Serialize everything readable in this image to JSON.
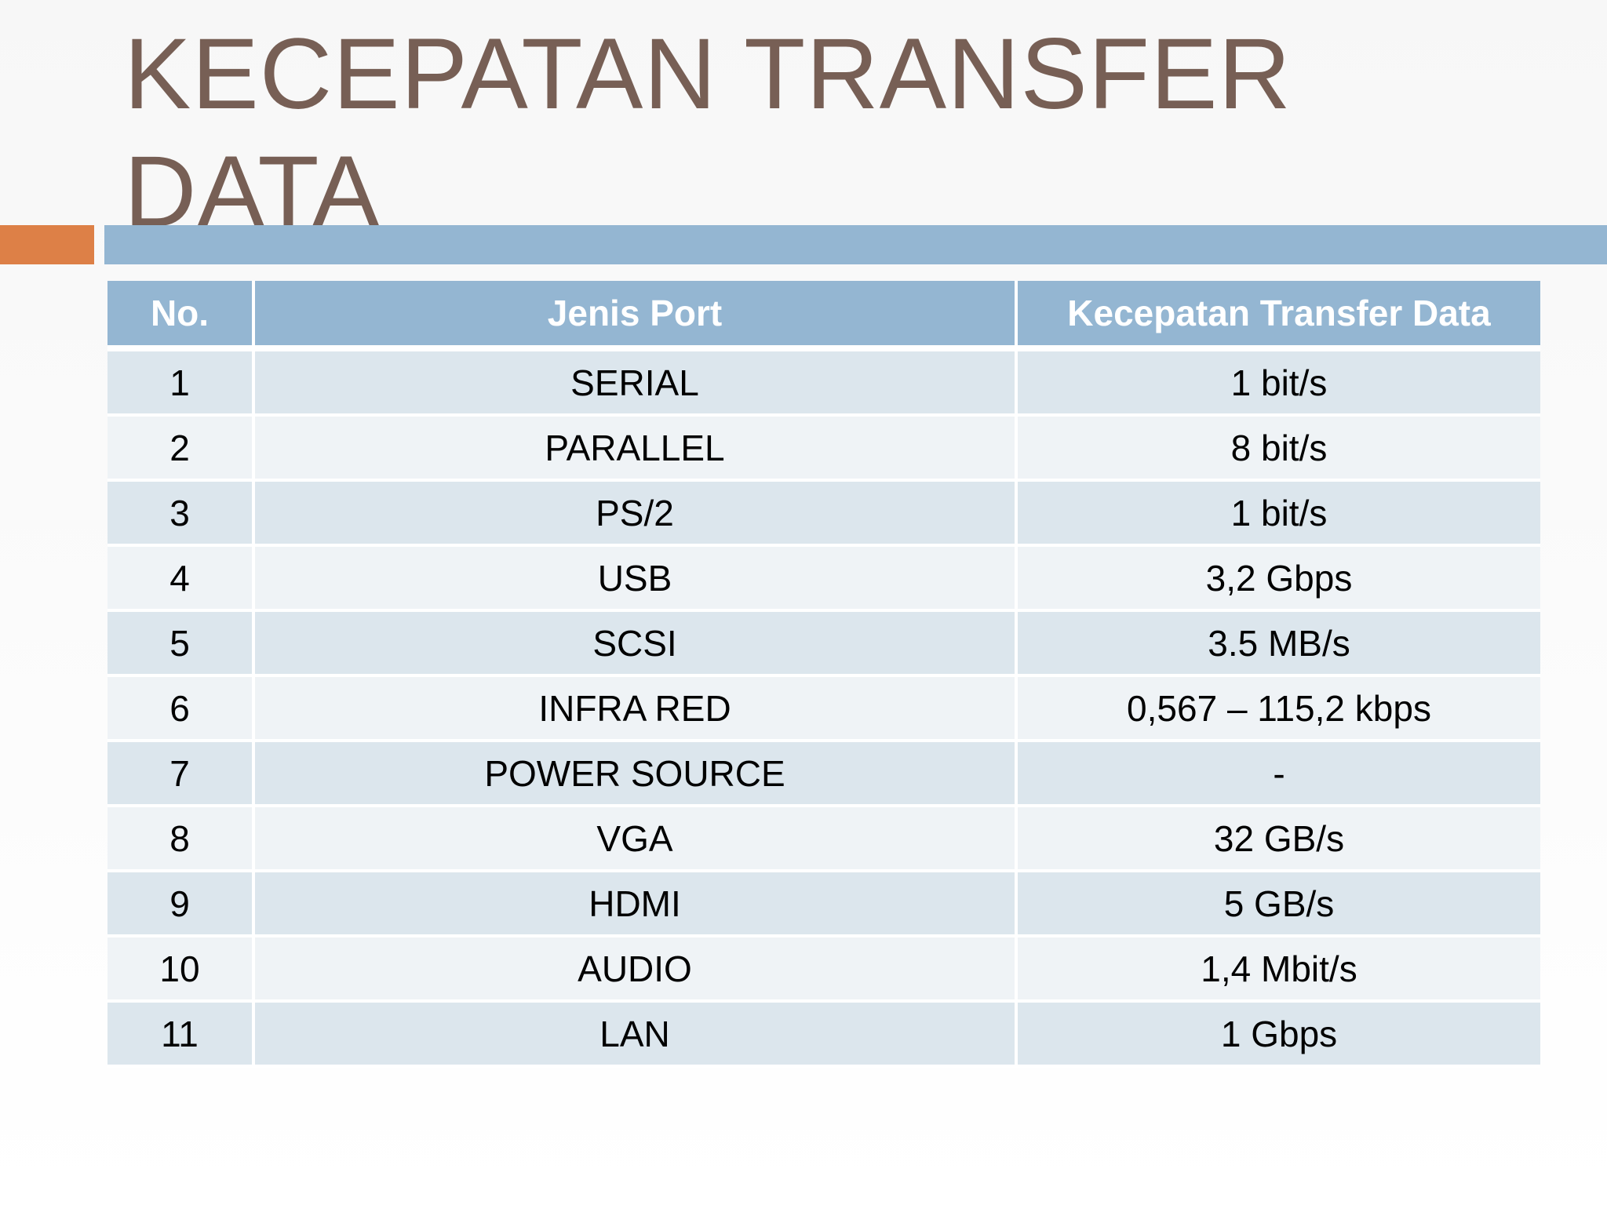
{
  "slide": {
    "title": "KECEPATAN TRANSFER DATA"
  },
  "table": {
    "headers": [
      "No.",
      "Jenis Port",
      "Kecepatan Transfer Data"
    ],
    "rows": [
      {
        "no": "1",
        "port": "SERIAL",
        "speed": "1 bit/s"
      },
      {
        "no": "2",
        "port": "PARALLEL",
        "speed": "8 bit/s"
      },
      {
        "no": "3",
        "port": "PS/2",
        "speed": "1 bit/s"
      },
      {
        "no": "4",
        "port": "USB",
        "speed": "3,2 Gbps"
      },
      {
        "no": "5",
        "port": "SCSI",
        "speed": "3.5 MB/s"
      },
      {
        "no": "6",
        "port": "INFRA RED",
        "speed": "0,567 – 115,2 kbps"
      },
      {
        "no": "7",
        "port": "POWER SOURCE",
        "speed": "-"
      },
      {
        "no": "8",
        "port": "VGA",
        "speed": "32 GB/s"
      },
      {
        "no": "9",
        "port": "HDMI",
        "speed": "5 GB/s"
      },
      {
        "no": "10",
        "port": "AUDIO",
        "speed": "1,4 Mbit/s"
      },
      {
        "no": "11",
        "port": "LAN",
        "speed": "1 Gbps"
      }
    ]
  },
  "colors": {
    "title": "#775f55",
    "accent_orange": "#dd8047",
    "accent_blue": "#94b6d2",
    "row_odd": "#dce6ed",
    "row_even": "#eff3f6"
  }
}
